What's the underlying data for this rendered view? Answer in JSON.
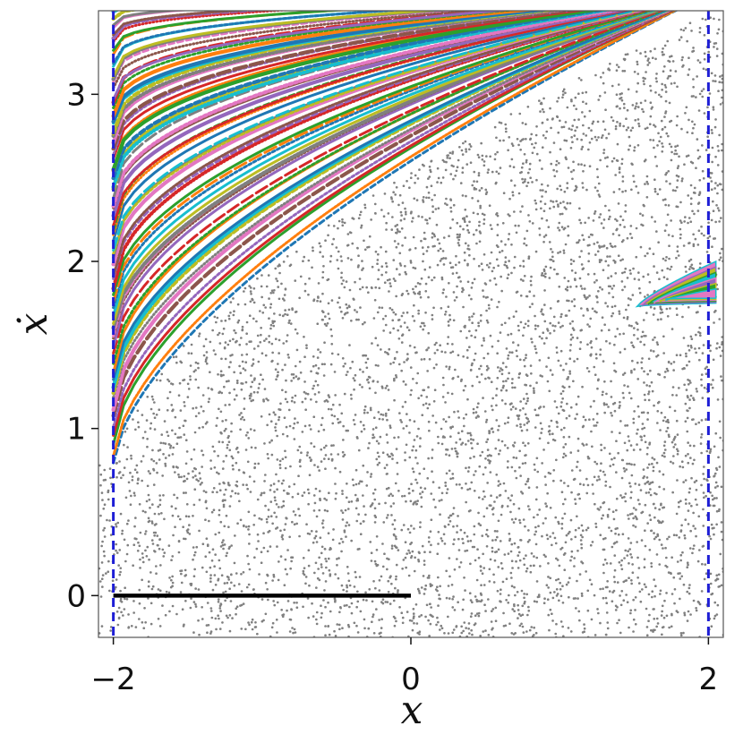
{
  "chart_data": {
    "type": "scatter",
    "xlabel": "x",
    "ylabel": "ẋ",
    "xlim": [
      -2.1,
      2.1
    ],
    "ylim": [
      -0.25,
      3.5
    ],
    "xticks": [
      -2,
      0,
      2
    ],
    "yticks": [
      0,
      1,
      2,
      3
    ],
    "xtick_labels": [
      "−2",
      "0",
      "2"
    ],
    "ytick_labels": [
      "0",
      "1",
      "2",
      "3"
    ],
    "grid": false,
    "legend": "none",
    "boundaries": [
      {
        "x": -2,
        "style": "dashed",
        "color": "#1f1fd6"
      },
      {
        "x": 2,
        "style": "dashed",
        "color": "#1f1fd6"
      }
    ],
    "segment": {
      "x": [
        -2,
        0
      ],
      "y": [
        0,
        0
      ],
      "color": "#000000"
    },
    "chaotic_sea": {
      "color": "#808080",
      "region": "points below the boundary curve y = 0.78 + 2.7*((x+2)/4)^0.62, for x in [-2, 2], y in [-0.25, 3.5]",
      "approx_count": 5200
    },
    "invariant_curves": {
      "colors": [
        "#1f77b4",
        "#ff7f0e",
        "#2ca02c",
        "#d62728",
        "#9467bd",
        "#8c564b",
        "#e377c2",
        "#7f7f7f",
        "#bcbd22",
        "#17becf"
      ],
      "base_curve": "y = y0 + (3.5 - y0)*((x+2)/4)^p",
      "y0_range": [
        0.78,
        3.5
      ],
      "approx_count": 70
    },
    "island": {
      "center": [
        1.8,
        1.82
      ],
      "x_range": [
        1.52,
        2.0
      ],
      "y_range": [
        1.72,
        2.0
      ],
      "colors": [
        "#e377c2",
        "#bcbd22",
        "#17becf",
        "#9467bd",
        "#2ca02c"
      ]
    }
  }
}
